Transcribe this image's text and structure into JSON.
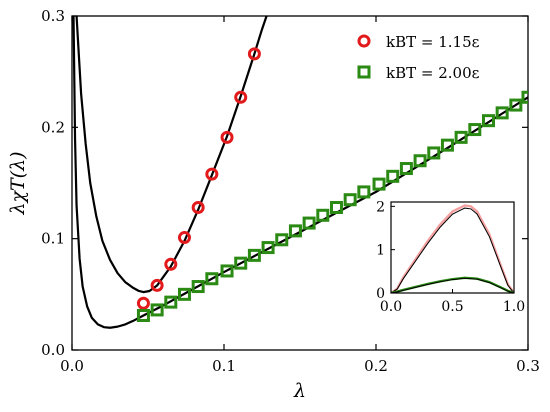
{
  "chart_data": [
    {
      "type": "scatter",
      "title": "",
      "xlabel": "λ",
      "ylabel": "λχT(λ)",
      "xlim": [
        0.0,
        0.3
      ],
      "ylim": [
        0.0,
        0.3
      ],
      "xticks": [
        "0.0",
        "0.1",
        "0.2",
        "0.3"
      ],
      "yticks": [
        "0.0",
        "0.1",
        "0.2",
        "0.3"
      ],
      "legend_position": "top-right",
      "series": [
        {
          "name": "kBT = 1.15ε",
          "marker": "open-circle",
          "color": "#e31a1c",
          "points": [
            [
              0.047,
              0.042
            ],
            [
              0.056,
              0.058
            ],
            [
              0.065,
              0.077
            ],
            [
              0.074,
              0.101
            ],
            [
              0.083,
              0.128
            ],
            [
              0.092,
              0.158
            ],
            [
              0.102,
              0.191
            ],
            [
              0.111,
              0.227
            ],
            [
              0.12,
              0.266
            ]
          ]
        },
        {
          "name": "kBT = 2.00ε",
          "marker": "open-square",
          "color": "#2a8a13",
          "points": [
            [
              0.047,
              0.031
            ],
            [
              0.056,
              0.036
            ],
            [
              0.065,
              0.043
            ],
            [
              0.074,
              0.05
            ],
            [
              0.083,
              0.057
            ],
            [
              0.092,
              0.064
            ],
            [
              0.102,
              0.071
            ],
            [
              0.111,
              0.078
            ],
            [
              0.12,
              0.085
            ],
            [
              0.129,
              0.092
            ],
            [
              0.138,
              0.099
            ],
            [
              0.147,
              0.107
            ],
            [
              0.156,
              0.114
            ],
            [
              0.165,
              0.121
            ],
            [
              0.174,
              0.128
            ],
            [
              0.183,
              0.135
            ],
            [
              0.192,
              0.142
            ],
            [
              0.202,
              0.149
            ],
            [
              0.211,
              0.156
            ],
            [
              0.22,
              0.163
            ],
            [
              0.229,
              0.17
            ],
            [
              0.238,
              0.177
            ],
            [
              0.247,
              0.184
            ],
            [
              0.256,
              0.191
            ],
            [
              0.265,
              0.198
            ],
            [
              0.274,
              0.206
            ],
            [
              0.283,
              0.213
            ],
            [
              0.292,
              0.22
            ],
            [
              0.3,
              0.227
            ]
          ]
        }
      ],
      "curves": [
        {
          "color": "#000000",
          "points": [
            [
              0.003,
              0.3
            ],
            [
              0.006,
              0.23
            ],
            [
              0.009,
              0.185
            ],
            [
              0.012,
              0.15
            ],
            [
              0.016,
              0.12
            ],
            [
              0.02,
              0.098
            ],
            [
              0.025,
              0.081
            ],
            [
              0.03,
              0.069
            ],
            [
              0.035,
              0.061
            ],
            [
              0.04,
              0.056
            ],
            [
              0.044,
              0.053
            ],
            [
              0.047,
              0.052
            ],
            [
              0.051,
              0.053
            ],
            [
              0.056,
              0.058
            ],
            [
              0.065,
              0.075
            ],
            [
              0.074,
              0.098
            ],
            [
              0.083,
              0.126
            ],
            [
              0.092,
              0.157
            ],
            [
              0.102,
              0.192
            ],
            [
              0.111,
              0.228
            ],
            [
              0.12,
              0.266
            ],
            [
              0.125,
              0.288
            ],
            [
              0.128,
              0.3
            ]
          ]
        },
        {
          "color": "#000000",
          "points": [
            [
              0.001,
              0.3
            ],
            [
              0.002,
              0.19
            ],
            [
              0.003,
              0.13
            ],
            [
              0.005,
              0.082
            ],
            [
              0.007,
              0.057
            ],
            [
              0.01,
              0.039
            ],
            [
              0.013,
              0.029
            ],
            [
              0.017,
              0.023
            ],
            [
              0.021,
              0.0205
            ],
            [
              0.025,
              0.02
            ],
            [
              0.03,
              0.021
            ],
            [
              0.035,
              0.023
            ],
            [
              0.04,
              0.026
            ],
            [
              0.047,
              0.031
            ],
            [
              0.06,
              0.04
            ],
            [
              0.08,
              0.055
            ],
            [
              0.1,
              0.07
            ],
            [
              0.15,
              0.106
            ],
            [
              0.2,
              0.142
            ],
            [
              0.25,
              0.184
            ],
            [
              0.3,
              0.227
            ]
          ]
        }
      ]
    },
    {
      "type": "line",
      "position": "inset",
      "xlim": [
        0.0,
        1.0
      ],
      "ylim": [
        0,
        2.1
      ],
      "xticks": [
        "0.0",
        "0.5",
        "1.0"
      ],
      "yticks": [
        "0",
        "1",
        "2"
      ],
      "series": [
        {
          "color": "#f4a0a0",
          "x": [
            0.0,
            0.05,
            0.1,
            0.2,
            0.3,
            0.4,
            0.5,
            0.6,
            0.65,
            0.7,
            0.8,
            0.9,
            0.95,
            1.0
          ],
          "values": [
            0.0,
            0.1,
            0.36,
            0.78,
            1.2,
            1.58,
            1.88,
            2.02,
            2.0,
            1.88,
            1.35,
            0.58,
            0.2,
            0.0
          ]
        },
        {
          "color": "#000000",
          "x": [
            0.0,
            0.05,
            0.1,
            0.2,
            0.3,
            0.4,
            0.5,
            0.6,
            0.65,
            0.7,
            0.8,
            0.9,
            0.95,
            1.0
          ],
          "values": [
            0.0,
            0.09,
            0.33,
            0.74,
            1.15,
            1.52,
            1.82,
            1.96,
            1.94,
            1.82,
            1.3,
            0.55,
            0.18,
            0.0
          ]
        },
        {
          "color": "#2a8a13",
          "x": [
            0.0,
            0.05,
            0.1,
            0.2,
            0.3,
            0.4,
            0.5,
            0.6,
            0.7,
            0.8,
            0.9,
            0.95,
            1.0
          ],
          "values": [
            0.0,
            0.03,
            0.07,
            0.14,
            0.21,
            0.27,
            0.32,
            0.35,
            0.33,
            0.25,
            0.12,
            0.05,
            0.0
          ]
        },
        {
          "color": "#000000",
          "x": [
            0.0,
            0.05,
            0.1,
            0.2,
            0.3,
            0.4,
            0.5,
            0.6,
            0.7,
            0.8,
            0.9,
            0.95,
            1.0
          ],
          "values": [
            0.0,
            0.025,
            0.06,
            0.13,
            0.2,
            0.26,
            0.31,
            0.34,
            0.32,
            0.24,
            0.11,
            0.045,
            0.0
          ]
        }
      ]
    }
  ]
}
